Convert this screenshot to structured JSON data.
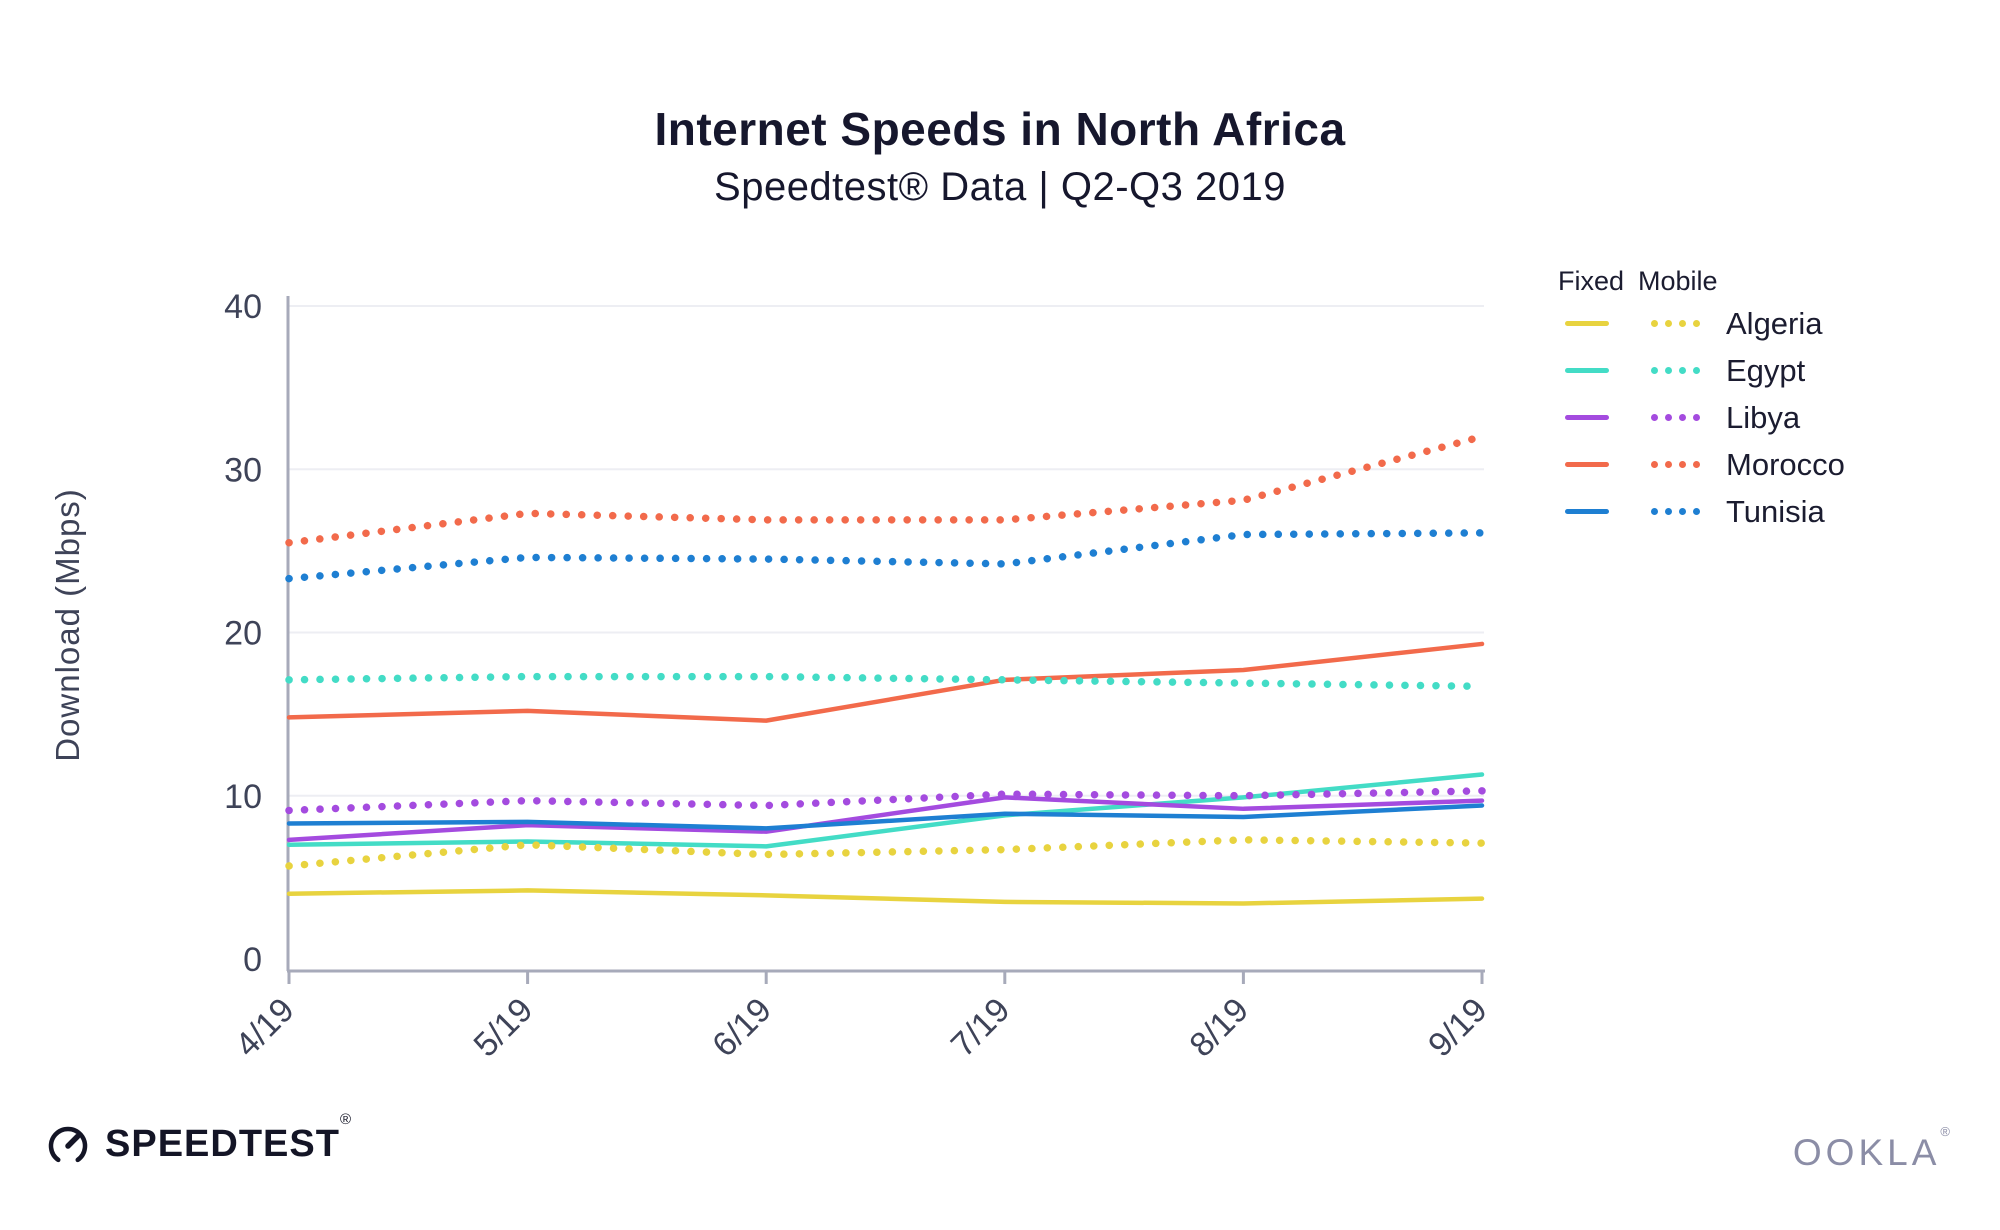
{
  "header": {
    "title": "Internet Speeds in North Africa",
    "subtitle": "Speedtest® Data | Q2-Q3 2019"
  },
  "chart_data": {
    "type": "line",
    "title": "Internet Speeds in North Africa",
    "subtitle": "Speedtest® Data | Q2-Q3 2019",
    "xlabel": "",
    "ylabel": "Download (Mbps)",
    "ylim": [
      0,
      40
    ],
    "yticks": [
      0,
      10,
      20,
      30,
      40
    ],
    "categories": [
      "4/19",
      "5/19",
      "6/19",
      "7/19",
      "8/19",
      "9/19"
    ],
    "grid": true,
    "legend_position": "right",
    "legend_columns": [
      "Fixed",
      "Mobile"
    ],
    "line_styles": {
      "fixed": "solid",
      "mobile": "dotted"
    },
    "countries": [
      {
        "name": "Algeria",
        "color": "#E8D33F",
        "fixed": [
          4.0,
          4.2,
          3.9,
          3.5,
          3.4,
          3.7
        ],
        "mobile": [
          5.7,
          7.0,
          6.4,
          6.7,
          7.3,
          7.1
        ]
      },
      {
        "name": "Egypt",
        "color": "#43DCC6",
        "fixed": [
          7.0,
          7.2,
          6.9,
          8.8,
          9.9,
          11.3
        ],
        "mobile": [
          17.1,
          17.3,
          17.3,
          17.1,
          16.9,
          16.7
        ]
      },
      {
        "name": "Libya",
        "color": "#A44BDF",
        "fixed": [
          7.3,
          8.2,
          7.8,
          9.9,
          9.2,
          9.7
        ],
        "mobile": [
          9.1,
          9.7,
          9.4,
          10.1,
          10.0,
          10.3
        ]
      },
      {
        "name": "Morocco",
        "color": "#F26A4B",
        "fixed": [
          14.8,
          15.2,
          14.6,
          17.1,
          17.7,
          19.3
        ],
        "mobile": [
          25.5,
          27.3,
          26.9,
          26.9,
          28.1,
          32.0
        ]
      },
      {
        "name": "Tunisia",
        "color": "#1E7FD2",
        "fixed": [
          8.3,
          8.4,
          8.0,
          8.9,
          8.7,
          9.4
        ],
        "mobile": [
          23.3,
          24.6,
          24.5,
          24.2,
          26.0,
          26.1
        ]
      }
    ],
    "axis_color": "#A7AABA",
    "grid_color": "#EDEEF3",
    "tick_label_color": "#3E4358"
  },
  "footer": {
    "speedtest": {
      "label": "SPEEDTEST",
      "mark": "®"
    },
    "ookla": {
      "label": "OOKLA",
      "mark": "®"
    }
  }
}
